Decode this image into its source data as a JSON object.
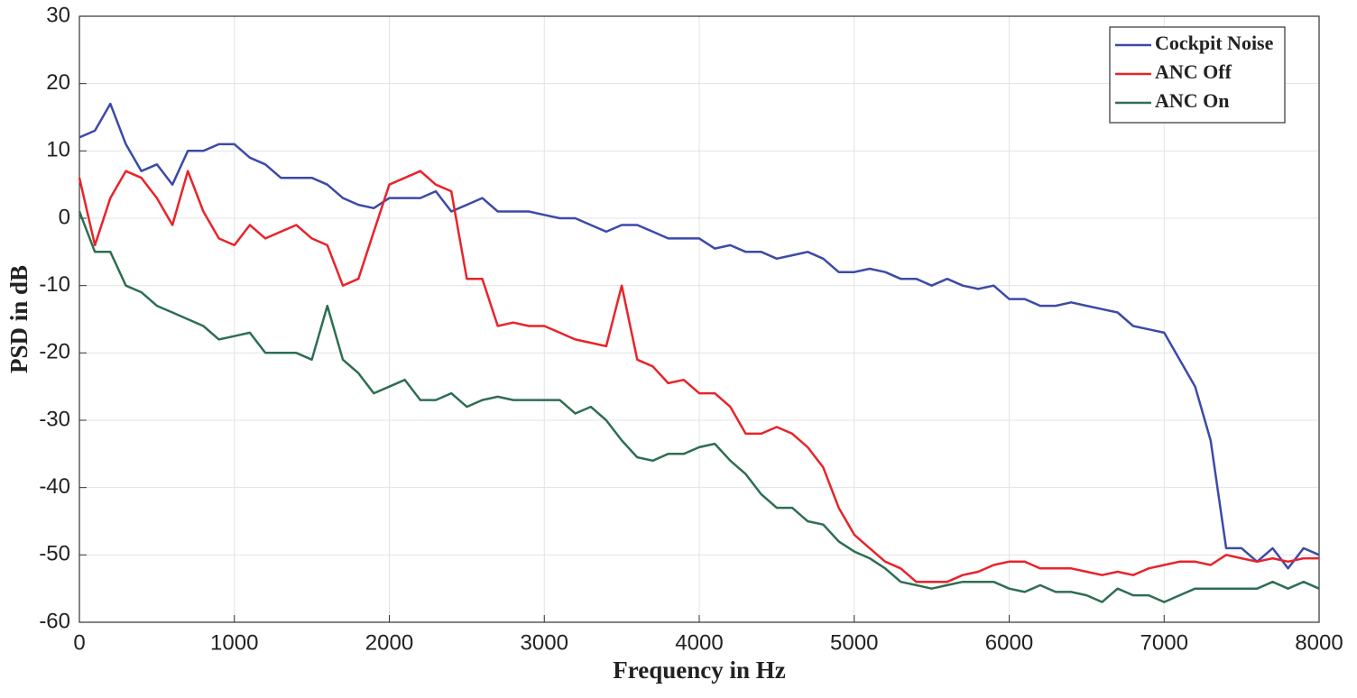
{
  "chart_data": {
    "type": "line",
    "xlabel": "Frequency in Hz",
    "ylabel": "PSD in dB",
    "x": [
      0,
      100,
      200,
      300,
      400,
      500,
      600,
      700,
      800,
      900,
      1000,
      1100,
      1200,
      1300,
      1400,
      1500,
      1600,
      1700,
      1800,
      1900,
      2000,
      2100,
      2200,
      2300,
      2400,
      2500,
      2600,
      2700,
      2800,
      2900,
      3000,
      3100,
      3200,
      3300,
      3400,
      3500,
      3600,
      3700,
      3800,
      3900,
      4000,
      4100,
      4200,
      4300,
      4400,
      4500,
      4600,
      4700,
      4800,
      4900,
      5000,
      5100,
      5200,
      5300,
      5400,
      5500,
      5600,
      5700,
      5800,
      5900,
      6000,
      6100,
      6200,
      6300,
      6400,
      6500,
      6600,
      6700,
      6800,
      6900,
      7000,
      7100,
      7200,
      7300,
      7400,
      7500,
      7600,
      7700,
      7800,
      7900,
      8000
    ],
    "series": [
      {
        "name": "Cockpit Noise",
        "color": "#3c4aa8",
        "values": [
          12,
          13,
          17,
          11,
          7,
          8,
          5,
          10,
          10,
          11,
          11,
          9,
          8,
          6,
          6,
          6,
          5,
          3,
          2,
          1.5,
          3,
          3,
          3,
          4,
          1,
          2,
          3,
          1,
          1,
          1,
          0.5,
          0,
          0,
          -1,
          -2,
          -1,
          -1,
          -2,
          -3,
          -3,
          -3,
          -4.5,
          -4,
          -5,
          -5,
          -6,
          -5.5,
          -5,
          -6,
          -8,
          -8,
          -7.5,
          -8,
          -9,
          -9,
          -10,
          -9,
          -10,
          -10.5,
          -10,
          -12,
          -12,
          -13,
          -13,
          -12.5,
          -13,
          -13.5,
          -14,
          -16,
          -16.5,
          -17,
          -21,
          -25,
          -33,
          -49,
          -49,
          -51,
          -49,
          -52,
          -49,
          -50
        ]
      },
      {
        "name": "ANC Off",
        "color": "#e8232a",
        "values": [
          6,
          -4,
          3,
          7,
          6,
          3,
          -1,
          7,
          1,
          -3,
          -4,
          -1,
          -3,
          -2,
          -1,
          -3,
          -4,
          -10,
          -9,
          -2,
          5,
          6,
          7,
          5,
          4,
          -9,
          -9,
          -16,
          -15.5,
          -16,
          -16,
          -17,
          -18,
          -18.5,
          -19,
          -10,
          -21,
          -22,
          -24.5,
          -24,
          -26,
          -26,
          -28,
          -32,
          -32,
          -31,
          -32,
          -34,
          -37,
          -43,
          -47,
          -49,
          -51,
          -52,
          -54,
          -54,
          -54,
          -53,
          -52.5,
          -51.5,
          -51,
          -51,
          -52,
          -52,
          -52,
          -52.5,
          -53,
          -52.5,
          -53,
          -52,
          -51.5,
          -51,
          -51,
          -51.5,
          -50,
          -50.5,
          -51,
          -50.5,
          -51,
          -50.5,
          -50.5
        ]
      },
      {
        "name": "ANC On",
        "color": "#2e6e52",
        "values": [
          1,
          -5,
          -5,
          -10,
          -11,
          -13,
          -14,
          -15,
          -16,
          -18,
          -17.5,
          -17,
          -20,
          -20,
          -20,
          -21,
          -13,
          -21,
          -23,
          -26,
          -25,
          -24,
          -27,
          -27,
          -26,
          -28,
          -27,
          -26.5,
          -27,
          -27,
          -27,
          -27,
          -29,
          -28,
          -30,
          -33,
          -35.5,
          -36,
          -35,
          -35,
          -34,
          -33.5,
          -36,
          -38,
          -41,
          -43,
          -43,
          -45,
          -45.5,
          -48,
          -49.5,
          -50.5,
          -52,
          -54,
          -54.5,
          -55,
          -54.5,
          -54,
          -54,
          -54,
          -55,
          -55.5,
          -54.5,
          -55.5,
          -55.5,
          -56,
          -57,
          -55,
          -56,
          -56,
          -57,
          -56,
          -55,
          -55,
          -55,
          -55,
          -55,
          -54,
          -55,
          -54,
          -55
        ]
      }
    ],
    "xlim": [
      0,
      8000
    ],
    "xticks": [
      0,
      1000,
      2000,
      3000,
      4000,
      5000,
      6000,
      7000,
      8000
    ],
    "ylim": [
      -60,
      30
    ],
    "yticks": [
      -60,
      -50,
      -40,
      -30,
      -20,
      -10,
      0,
      10,
      20,
      30
    ],
    "grid": true,
    "legend": "upper right"
  }
}
